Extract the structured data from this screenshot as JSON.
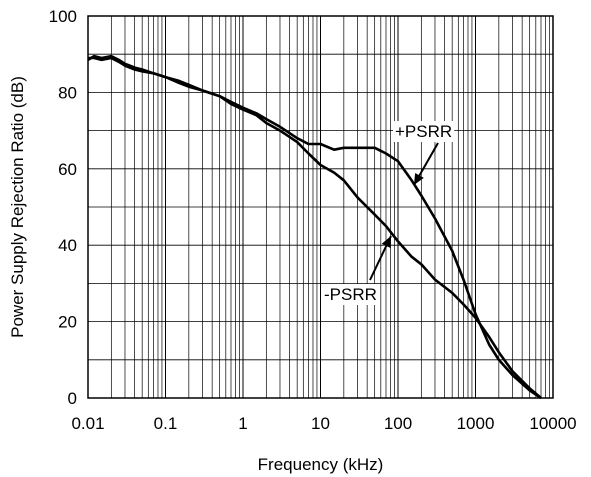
{
  "chart_data": {
    "type": "line",
    "title": "",
    "xlabel": "Frequency (kHz)",
    "ylabel": "Power Supply Rejection Ratio (dB)",
    "xscale": "log",
    "xlim": [
      0.01,
      10000
    ],
    "ylim": [
      0,
      100
    ],
    "xticks": [
      "0.01",
      "0.1",
      "1",
      "10",
      "100",
      "1000",
      "10000"
    ],
    "yticks": [
      "0",
      "20",
      "40",
      "60",
      "80",
      "100"
    ],
    "grid": true,
    "legend": "none",
    "annotations": [
      "+PSRR",
      "-PSRR"
    ],
    "series": [
      {
        "name": "+PSRR",
        "points": [
          [
            0.01,
            88.5
          ],
          [
            0.012,
            89.5
          ],
          [
            0.015,
            89
          ],
          [
            0.02,
            89.5
          ],
          [
            0.025,
            88.5
          ],
          [
            0.03,
            87.5
          ],
          [
            0.04,
            86.5
          ],
          [
            0.05,
            86
          ],
          [
            0.07,
            85
          ],
          [
            0.1,
            84
          ],
          [
            0.15,
            83
          ],
          [
            0.2,
            82
          ],
          [
            0.3,
            80.5
          ],
          [
            0.5,
            79
          ],
          [
            0.7,
            77.5
          ],
          [
            1,
            76
          ],
          [
            1.5,
            74.5
          ],
          [
            2,
            73
          ],
          [
            3,
            71
          ],
          [
            5,
            68
          ],
          [
            7,
            66.5
          ],
          [
            10,
            66.5
          ],
          [
            15,
            65
          ],
          [
            20,
            65.5
          ],
          [
            30,
            65.5
          ],
          [
            50,
            65.5
          ],
          [
            70,
            64
          ],
          [
            100,
            62
          ],
          [
            150,
            57
          ],
          [
            200,
            53
          ],
          [
            300,
            47
          ],
          [
            500,
            38.5
          ],
          [
            700,
            31
          ],
          [
            1000,
            22
          ],
          [
            1500,
            14
          ],
          [
            2000,
            10
          ],
          [
            3000,
            6
          ],
          [
            5000,
            2
          ],
          [
            7000,
            0
          ]
        ]
      },
      {
        "name": "-PSRR",
        "points": [
          [
            0.01,
            89
          ],
          [
            0.012,
            89
          ],
          [
            0.015,
            88.5
          ],
          [
            0.02,
            89
          ],
          [
            0.025,
            88
          ],
          [
            0.03,
            87
          ],
          [
            0.04,
            86
          ],
          [
            0.05,
            85.5
          ],
          [
            0.07,
            85
          ],
          [
            0.1,
            84
          ],
          [
            0.15,
            82.5
          ],
          [
            0.2,
            81.5
          ],
          [
            0.3,
            80.5
          ],
          [
            0.5,
            79
          ],
          [
            0.7,
            77
          ],
          [
            1,
            75.5
          ],
          [
            1.5,
            74
          ],
          [
            2,
            72
          ],
          [
            3,
            70
          ],
          [
            5,
            67
          ],
          [
            7,
            64
          ],
          [
            10,
            61
          ],
          [
            15,
            59
          ],
          [
            20,
            57
          ],
          [
            30,
            52.5
          ],
          [
            50,
            48
          ],
          [
            70,
            45
          ],
          [
            100,
            41
          ],
          [
            150,
            37
          ],
          [
            200,
            35
          ],
          [
            300,
            31
          ],
          [
            500,
            27.5
          ],
          [
            700,
            24.5
          ],
          [
            1000,
            21
          ],
          [
            1500,
            16
          ],
          [
            2000,
            12
          ],
          [
            3000,
            7
          ],
          [
            5000,
            2.5
          ],
          [
            7000,
            0
          ]
        ]
      }
    ]
  }
}
